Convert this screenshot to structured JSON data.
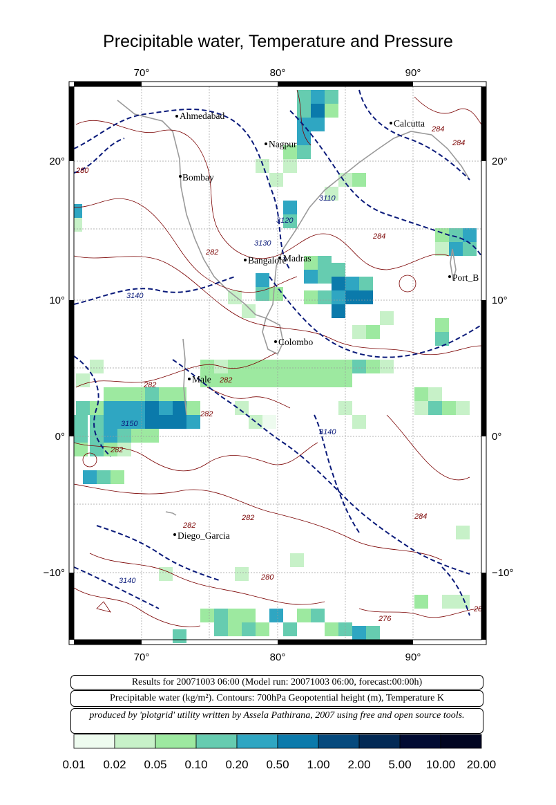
{
  "title": "Precipitable water, Temperature and Pressure",
  "map": {
    "lon_labels": [
      "70°",
      "80°",
      "90°"
    ],
    "lat_labels": [
      "20°",
      "10°",
      "0°",
      "−10°"
    ],
    "cities": [
      {
        "name": "Ahmedabad"
      },
      {
        "name": "Nagpur"
      },
      {
        "name": "Calcutta"
      },
      {
        "name": "Bombay"
      },
      {
        "name": "Madras"
      },
      {
        "name": "Bangalore"
      },
      {
        "name": "Port_B"
      },
      {
        "name": "Colombo"
      },
      {
        "name": "Male"
      },
      {
        "name": "Diego_Garcia"
      }
    ],
    "contour_labels": [
      "280",
      "282",
      "284",
      "276",
      "3110",
      "3120",
      "3130",
      "3140",
      "3150"
    ]
  },
  "info": {
    "line1": "Results for 20071003 06:00 (Model run: 20071003 06:00, forecast:00:00h)",
    "line2": "Precipitable water (kg/m²).  Contours: 700hPa Geopotential height (m), Temperature K",
    "line3": "produced by 'plotgrid' utility written by Assela Pathirana, 2007 using free and open source tools."
  },
  "colorbar": {
    "labels": [
      "0.01",
      "0.02",
      "0.05",
      "0.10",
      "0.20",
      "0.50",
      "1.00",
      "2.00",
      "5.00",
      "10.00",
      "20.00"
    ],
    "colors": [
      "#eefbef",
      "#c7f1c8",
      "#9de9a0",
      "#66ccb0",
      "#2fa6c2",
      "#0b7aab",
      "#064a7d",
      "#032a55",
      "#020c33",
      "#010521"
    ]
  }
}
